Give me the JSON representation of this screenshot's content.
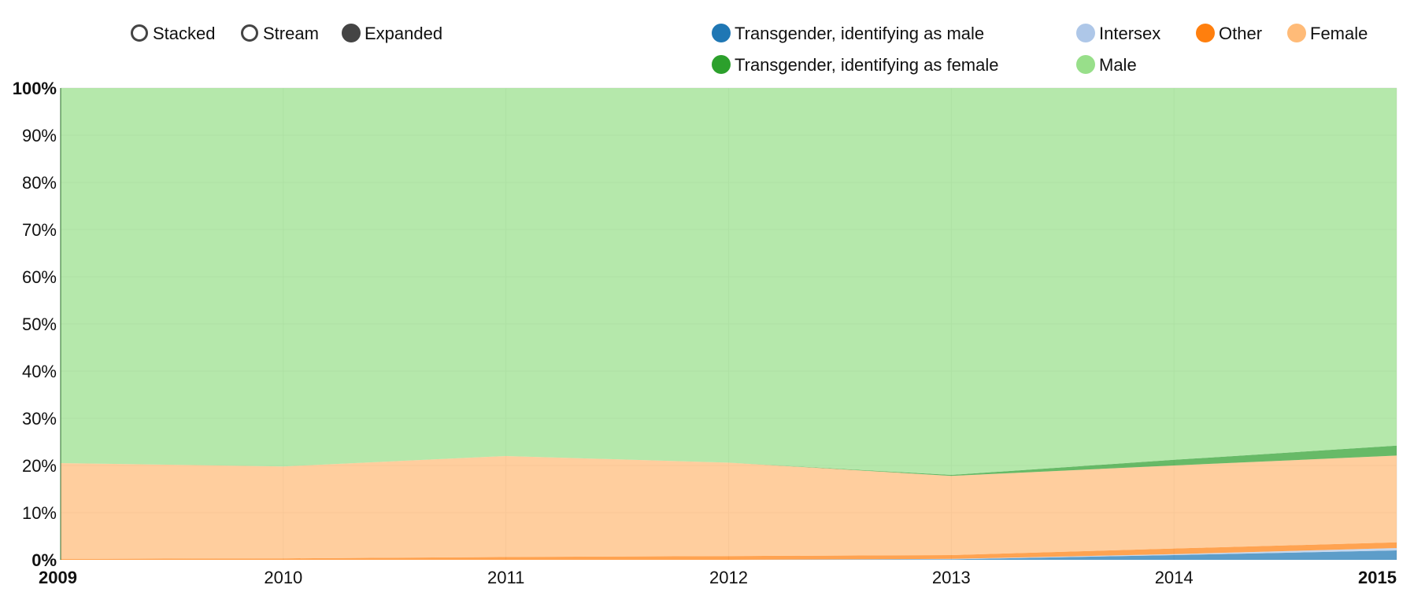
{
  "controls": {
    "modes": [
      {
        "label": "Stacked",
        "selected": false
      },
      {
        "label": "Stream",
        "selected": false
      },
      {
        "label": "Expanded",
        "selected": true
      }
    ]
  },
  "legend": {
    "items": [
      {
        "label": "Transgender, identifying as male",
        "color": "#1f77b4"
      },
      {
        "label": "Intersex",
        "color": "#aec7e8"
      },
      {
        "label": "Other",
        "color": "#ff7f0e"
      },
      {
        "label": "Female",
        "color": "#ffbb78"
      },
      {
        "label": "Transgender, identifying as female",
        "color": "#2ca02c"
      },
      {
        "label": "Male",
        "color": "#98df8a"
      }
    ]
  },
  "chart_data": {
    "type": "area",
    "stacking": "expanded",
    "title": "",
    "xlabel": "",
    "ylabel": "",
    "x": [
      2009,
      2010,
      2011,
      2012,
      2013,
      2014,
      2015
    ],
    "x_tick_labels": [
      "2009",
      "2010",
      "2011",
      "2012",
      "2013",
      "2014",
      "2015"
    ],
    "y_tick_labels": [
      "0%",
      "10%",
      "20%",
      "30%",
      "40%",
      "50%",
      "60%",
      "70%",
      "80%",
      "90%",
      "100%"
    ],
    "ylim": [
      0,
      100
    ],
    "grid": true,
    "legend_position": "top-right",
    "series": [
      {
        "name": "Transgender, identifying as male",
        "color": "#1f77b4",
        "values": [
          0,
          0,
          0,
          0,
          0.1,
          1.0,
          2.0
        ]
      },
      {
        "name": "Intersex",
        "color": "#aec7e8",
        "values": [
          0,
          0,
          0,
          0,
          0.1,
          0.2,
          0.5
        ]
      },
      {
        "name": "Other",
        "color": "#ff7f0e",
        "values": [
          0.2,
          0.3,
          0.6,
          0.8,
          0.8,
          1.2,
          1.2
        ]
      },
      {
        "name": "Female",
        "color": "#ffbb78",
        "values": [
          20.3,
          19.5,
          21.4,
          19.8,
          16.8,
          17.6,
          18.4
        ]
      },
      {
        "name": "Transgender, identifying as female",
        "color": "#2ca02c",
        "values": [
          0,
          0,
          0,
          0,
          0.2,
          1.2,
          2.1
        ]
      },
      {
        "name": "Male",
        "color": "#98df8a",
        "values": [
          79.5,
          80.2,
          78.0,
          79.4,
          82.0,
          78.8,
          75.8
        ]
      }
    ]
  }
}
